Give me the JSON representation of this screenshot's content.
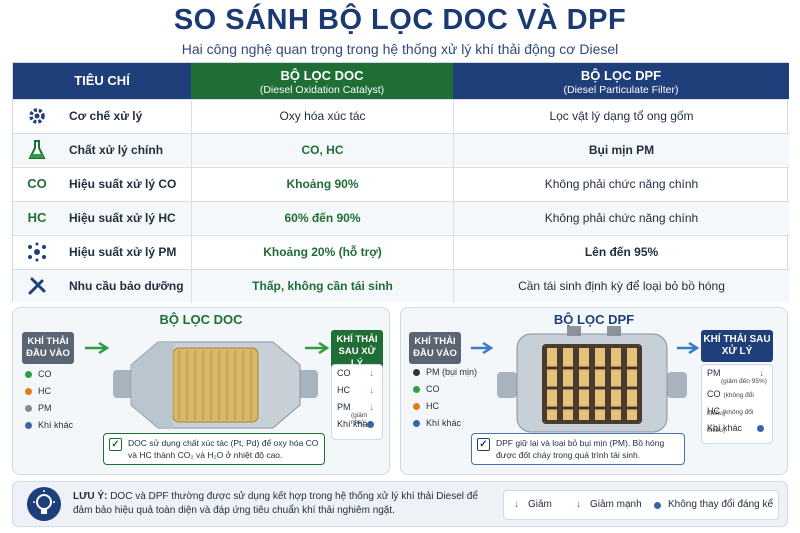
{
  "title": "SO SÁNH BỘ LỌC DOC VÀ DPF",
  "subtitle": "Hai công nghệ quan trọng trong hệ thống xử lý khí thải động cơ Diesel",
  "table": {
    "head_criteria": "TIÊU CHÍ",
    "head_doc": "BỘ LỌC DOC",
    "head_doc_sub": "(Diesel Oxidation Catalyst)",
    "head_dpf": "BỘ LỌC DPF",
    "head_dpf_sub": "(Diesel Particulate Filter)",
    "rows": [
      {
        "icon": "gear-icon",
        "label": "Cơ chế xử lý",
        "doc": "Oxy hóa xúc tác",
        "dpf": "Lọc vật lý dạng tổ ong gốm"
      },
      {
        "icon": "flask-icon",
        "label": "Chất xử lý chính",
        "doc": "CO, HC",
        "dpf": "Bụi mịn PM"
      },
      {
        "icon": "co-icon",
        "icon_text": "CO",
        "label": "Hiệu suất xử lý CO",
        "doc": "Khoảng 90%",
        "dpf": "Không phải chức năng chính"
      },
      {
        "icon": "hc-icon",
        "icon_text": "HC",
        "label": "Hiệu suất xử lý HC",
        "doc": "60% đến 90%",
        "dpf": "Không phải chức năng chính"
      },
      {
        "icon": "particles-icon",
        "label": "Hiệu suất xử lý PM",
        "doc": "Khoảng 20% (hỗ trợ)",
        "dpf": "Lên đến 95%"
      },
      {
        "icon": "tools-icon",
        "label": "Nhu cầu bảo dưỡng",
        "doc": "Thấp, không cần tái sinh",
        "dpf": "Cần tái sinh định kỳ để loại bỏ bồ hóng"
      }
    ]
  },
  "doc_panel": {
    "title": "BỘ LỌC DOC",
    "in_tag": "KHÍ THẢI ĐẦU VÀO",
    "inputs": [
      "CO",
      "HC",
      "PM",
      "Khí khác"
    ],
    "out_tag": "KHÍ THẢI SAU XỬ LÝ",
    "outputs": [
      {
        "label": "CO",
        "note": ""
      },
      {
        "label": "HC",
        "note": ""
      },
      {
        "label": "PM",
        "note": "(giảm nhẹ)"
      },
      {
        "label": "Khí khác",
        "note": ""
      }
    ],
    "note": "DOC sử dụng chất xúc tác (Pt, Pd) để oxy hóa CO và HC thành CO₂ và H₂O ở nhiệt độ cao."
  },
  "dpf_panel": {
    "title": "BỘ LỌC DPF",
    "in_tag": "KHÍ THẢI ĐẦU VÀO",
    "inputs": [
      "PM (bụi mịn)",
      "CO",
      "HC",
      "Khí khác"
    ],
    "out_tag": "KHÍ THẢI SAU XỬ LÝ",
    "outputs": [
      {
        "label": "PM",
        "note": "(giảm đến 95%)"
      },
      {
        "label": "CO",
        "note": "(không đổi nhiều)"
      },
      {
        "label": "HC",
        "note": "(không đổi nhiều)"
      },
      {
        "label": "Khí khác",
        "note": ""
      }
    ],
    "note": "DPF giữ lại và loại bỏ bụi mịn (PM). Bồ hóng được đốt cháy trong quá trình tái sinh."
  },
  "footer": {
    "note_label": "LƯU Ý:",
    "note_text": "DOC và DPF thường được sử dụng kết hợp trong hệ thống xử lý khí thải Diesel để đảm bảo hiệu quả toàn diện và đáp ứng tiêu chuẩn khí thải nghiêm ngặt.",
    "legend_decrease": "Giảm",
    "legend_strong": "Giảm mạnh",
    "legend_nochange": "Không thay đổi đáng kể"
  },
  "colors": {
    "navy": "#1e3f7a",
    "green": "#1f6e35",
    "co": "#2e9e44",
    "hc": "#e07b1c",
    "pm": "#888888",
    "other": "#3a63a8"
  }
}
